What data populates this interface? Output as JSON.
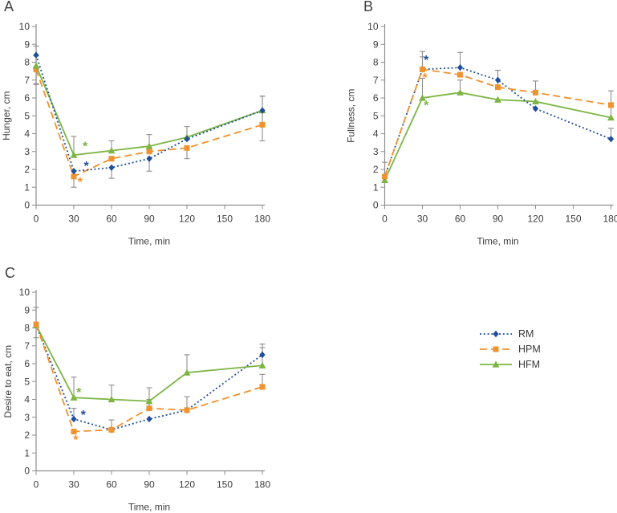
{
  "figure": {
    "background": "#ffffff"
  },
  "colors": {
    "rm": "#1F4E9B",
    "hpm": "#F0922D",
    "hfm": "#7CB543",
    "error_bar": "#8E8E8E",
    "axis": "#8E8E8E",
    "text": "#3D3D3D"
  },
  "legend": {
    "position": "right-middle",
    "items": [
      {
        "label": "RM",
        "series": "rm"
      },
      {
        "label": "HPM",
        "series": "hpm"
      },
      {
        "label": "HFM",
        "series": "hfm"
      }
    ]
  },
  "chart_data": [
    {
      "type": "line",
      "panel_label": "A",
      "ylabel": "Hunger, cm",
      "xlabel": "Time, min",
      "x": [
        0,
        30,
        60,
        90,
        120,
        180
      ],
      "xticks": [
        0,
        30,
        60,
        90,
        120,
        150,
        180
      ],
      "ylim": [
        0,
        10
      ],
      "ytick_step": 1,
      "grid": false,
      "series": [
        {
          "name": "HPM",
          "color_key": "hpm",
          "line": "dashed",
          "marker": "square",
          "values": [
            7.6,
            1.6,
            2.6,
            3.0,
            3.2,
            4.5
          ],
          "err_up": [
            0,
            0,
            0,
            0,
            0,
            0
          ],
          "err_down": [
            0.85,
            0.6,
            0,
            0,
            0.6,
            0.9
          ]
        },
        {
          "name": "HFM",
          "color_key": "hfm",
          "line": "solid",
          "marker": "triangle",
          "values": [
            7.8,
            2.8,
            3.05,
            3.3,
            3.8,
            5.3
          ],
          "err_up": [
            0.55,
            1.05,
            0.55,
            0.65,
            0.6,
            0.8
          ],
          "err_down": [
            1.0,
            0,
            0,
            0,
            0,
            0
          ]
        },
        {
          "name": "RM",
          "color_key": "rm",
          "line": "dotted",
          "marker": "diamond",
          "values": [
            8.4,
            1.9,
            2.1,
            2.6,
            3.7,
            5.3
          ],
          "err_up": [
            0.5,
            0,
            0,
            0,
            0,
            0.8
          ],
          "err_down": [
            0,
            0,
            0.6,
            0.7,
            0,
            0.85
          ]
        }
      ],
      "annotations": [
        {
          "text": "*",
          "series": "hfm",
          "x": 39,
          "y": 3.25
        },
        {
          "text": "*",
          "series": "rm",
          "x": 40,
          "y": 2.15
        },
        {
          "text": "*",
          "series": "hpm",
          "x": 35,
          "y": 1.25
        }
      ]
    },
    {
      "type": "line",
      "panel_label": "B",
      "ylabel": "Fullness, cm",
      "xlabel": "Time, min",
      "x": [
        0,
        30,
        60,
        90,
        120,
        180
      ],
      "xticks": [
        0,
        30,
        60,
        90,
        120,
        150,
        180
      ],
      "ylim": [
        0,
        10
      ],
      "ytick_step": 1,
      "grid": false,
      "series": [
        {
          "name": "HFM",
          "color_key": "hfm",
          "line": "solid",
          "marker": "triangle",
          "values": [
            1.4,
            6.0,
            6.3,
            5.9,
            5.8,
            4.9
          ],
          "err_up": [
            0,
            1.1,
            0.7,
            0,
            0,
            0.6
          ],
          "err_down": [
            0,
            0,
            0,
            0,
            0,
            0
          ]
        },
        {
          "name": "RM",
          "color_key": "rm",
          "line": "dotted",
          "marker": "diamond",
          "values": [
            1.6,
            7.6,
            7.7,
            7.0,
            5.4,
            3.7
          ],
          "err_up": [
            0.8,
            0.7,
            0.85,
            0.55,
            0,
            0.6
          ],
          "err_down": [
            0,
            0,
            0,
            0,
            0,
            0
          ]
        },
        {
          "name": "HPM",
          "color_key": "hpm",
          "line": "dashed",
          "marker": "square",
          "values": [
            1.6,
            7.6,
            7.3,
            6.6,
            6.3,
            5.6
          ],
          "err_up": [
            0,
            1.0,
            0,
            0.95,
            0.65,
            0.8
          ],
          "err_down": [
            0,
            0,
            0,
            0,
            0,
            0
          ]
        }
      ],
      "annotations": [
        {
          "text": "*",
          "series": "rm",
          "x": 33,
          "y": 8.1
        },
        {
          "text": "*",
          "series": "hpm",
          "x": 32,
          "y": 7.1
        },
        {
          "text": "*",
          "series": "hfm",
          "x": 33,
          "y": 5.55
        }
      ]
    },
    {
      "type": "line",
      "panel_label": "C",
      "ylabel": "Desire to eat, cm",
      "xlabel": "Time, min",
      "x": [
        0,
        30,
        60,
        90,
        120,
        180
      ],
      "xticks": [
        0,
        30,
        60,
        90,
        120,
        150,
        180
      ],
      "ylim": [
        0,
        10
      ],
      "ytick_step": 1,
      "grid": false,
      "series": [
        {
          "name": "RM",
          "color_key": "rm",
          "line": "dotted",
          "marker": "diamond",
          "values": [
            8.15,
            2.9,
            2.3,
            2.9,
            3.4,
            6.5
          ],
          "err_up": [
            1.0,
            0.6,
            0.55,
            0,
            0.75,
            0.6
          ],
          "err_down": [
            0.7,
            0,
            0,
            0,
            0,
            0
          ]
        },
        {
          "name": "HFM",
          "color_key": "hfm",
          "line": "solid",
          "marker": "triangle",
          "values": [
            8.15,
            4.1,
            4.0,
            3.9,
            5.5,
            5.9
          ],
          "err_up": [
            0,
            1.15,
            0.8,
            0.75,
            1.0,
            1.0
          ],
          "err_down": [
            0,
            0,
            0,
            0,
            0,
            0
          ]
        },
        {
          "name": "HPM",
          "color_key": "hpm",
          "line": "dashed",
          "marker": "square",
          "values": [
            8.2,
            2.2,
            2.3,
            3.5,
            3.4,
            4.7
          ],
          "err_up": [
            0,
            0,
            0,
            0.5,
            0,
            0.7
          ],
          "err_down": [
            0,
            0,
            0,
            0,
            0,
            0
          ]
        }
      ],
      "annotations": [
        {
          "text": "*",
          "series": "hfm",
          "x": 34,
          "y": 4.35
        },
        {
          "text": "*",
          "series": "rm",
          "x": 37.5,
          "y": 3.1
        },
        {
          "text": "*",
          "series": "hpm",
          "x": 31.5,
          "y": 1.7
        }
      ]
    }
  ]
}
